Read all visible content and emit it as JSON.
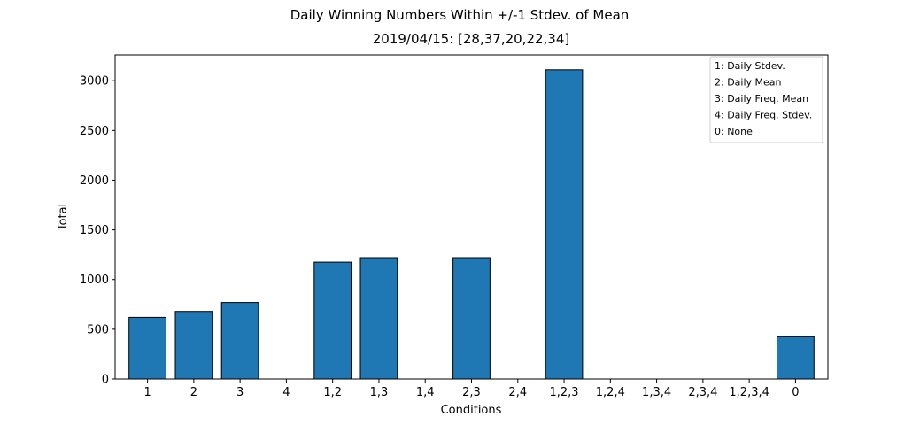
{
  "chart_data": {
    "type": "bar",
    "suptitle": "Daily Winning Numbers Within +/-1 Stdev. of Mean",
    "title": "2019/04/15: [28,37,20,22,34]",
    "xlabel": "Conditions",
    "ylabel": "Total",
    "categories": [
      "1",
      "2",
      "3",
      "4",
      "1,2",
      "1,3",
      "1,4",
      "2,3",
      "2,4",
      "1,2,3",
      "1,2,4",
      "1,3,4",
      "2,3,4",
      "1,2,3,4",
      "0"
    ],
    "values": [
      620,
      680,
      770,
      0,
      1175,
      1220,
      0,
      1220,
      0,
      3110,
      0,
      0,
      0,
      0,
      425
    ],
    "ylim": [
      0,
      3260
    ],
    "yticks": [
      0,
      500,
      1000,
      1500,
      2000,
      2500,
      3000
    ],
    "bar_color": "#1f77b4",
    "edge_color": "#000000",
    "grid": false,
    "legend": {
      "placement": "top-right",
      "entries": [
        "1: Daily Stdev.",
        "2: Daily Mean",
        "3: Daily Freq. Mean",
        "4: Daily Freq. Stdev.",
        "0: None"
      ]
    }
  }
}
